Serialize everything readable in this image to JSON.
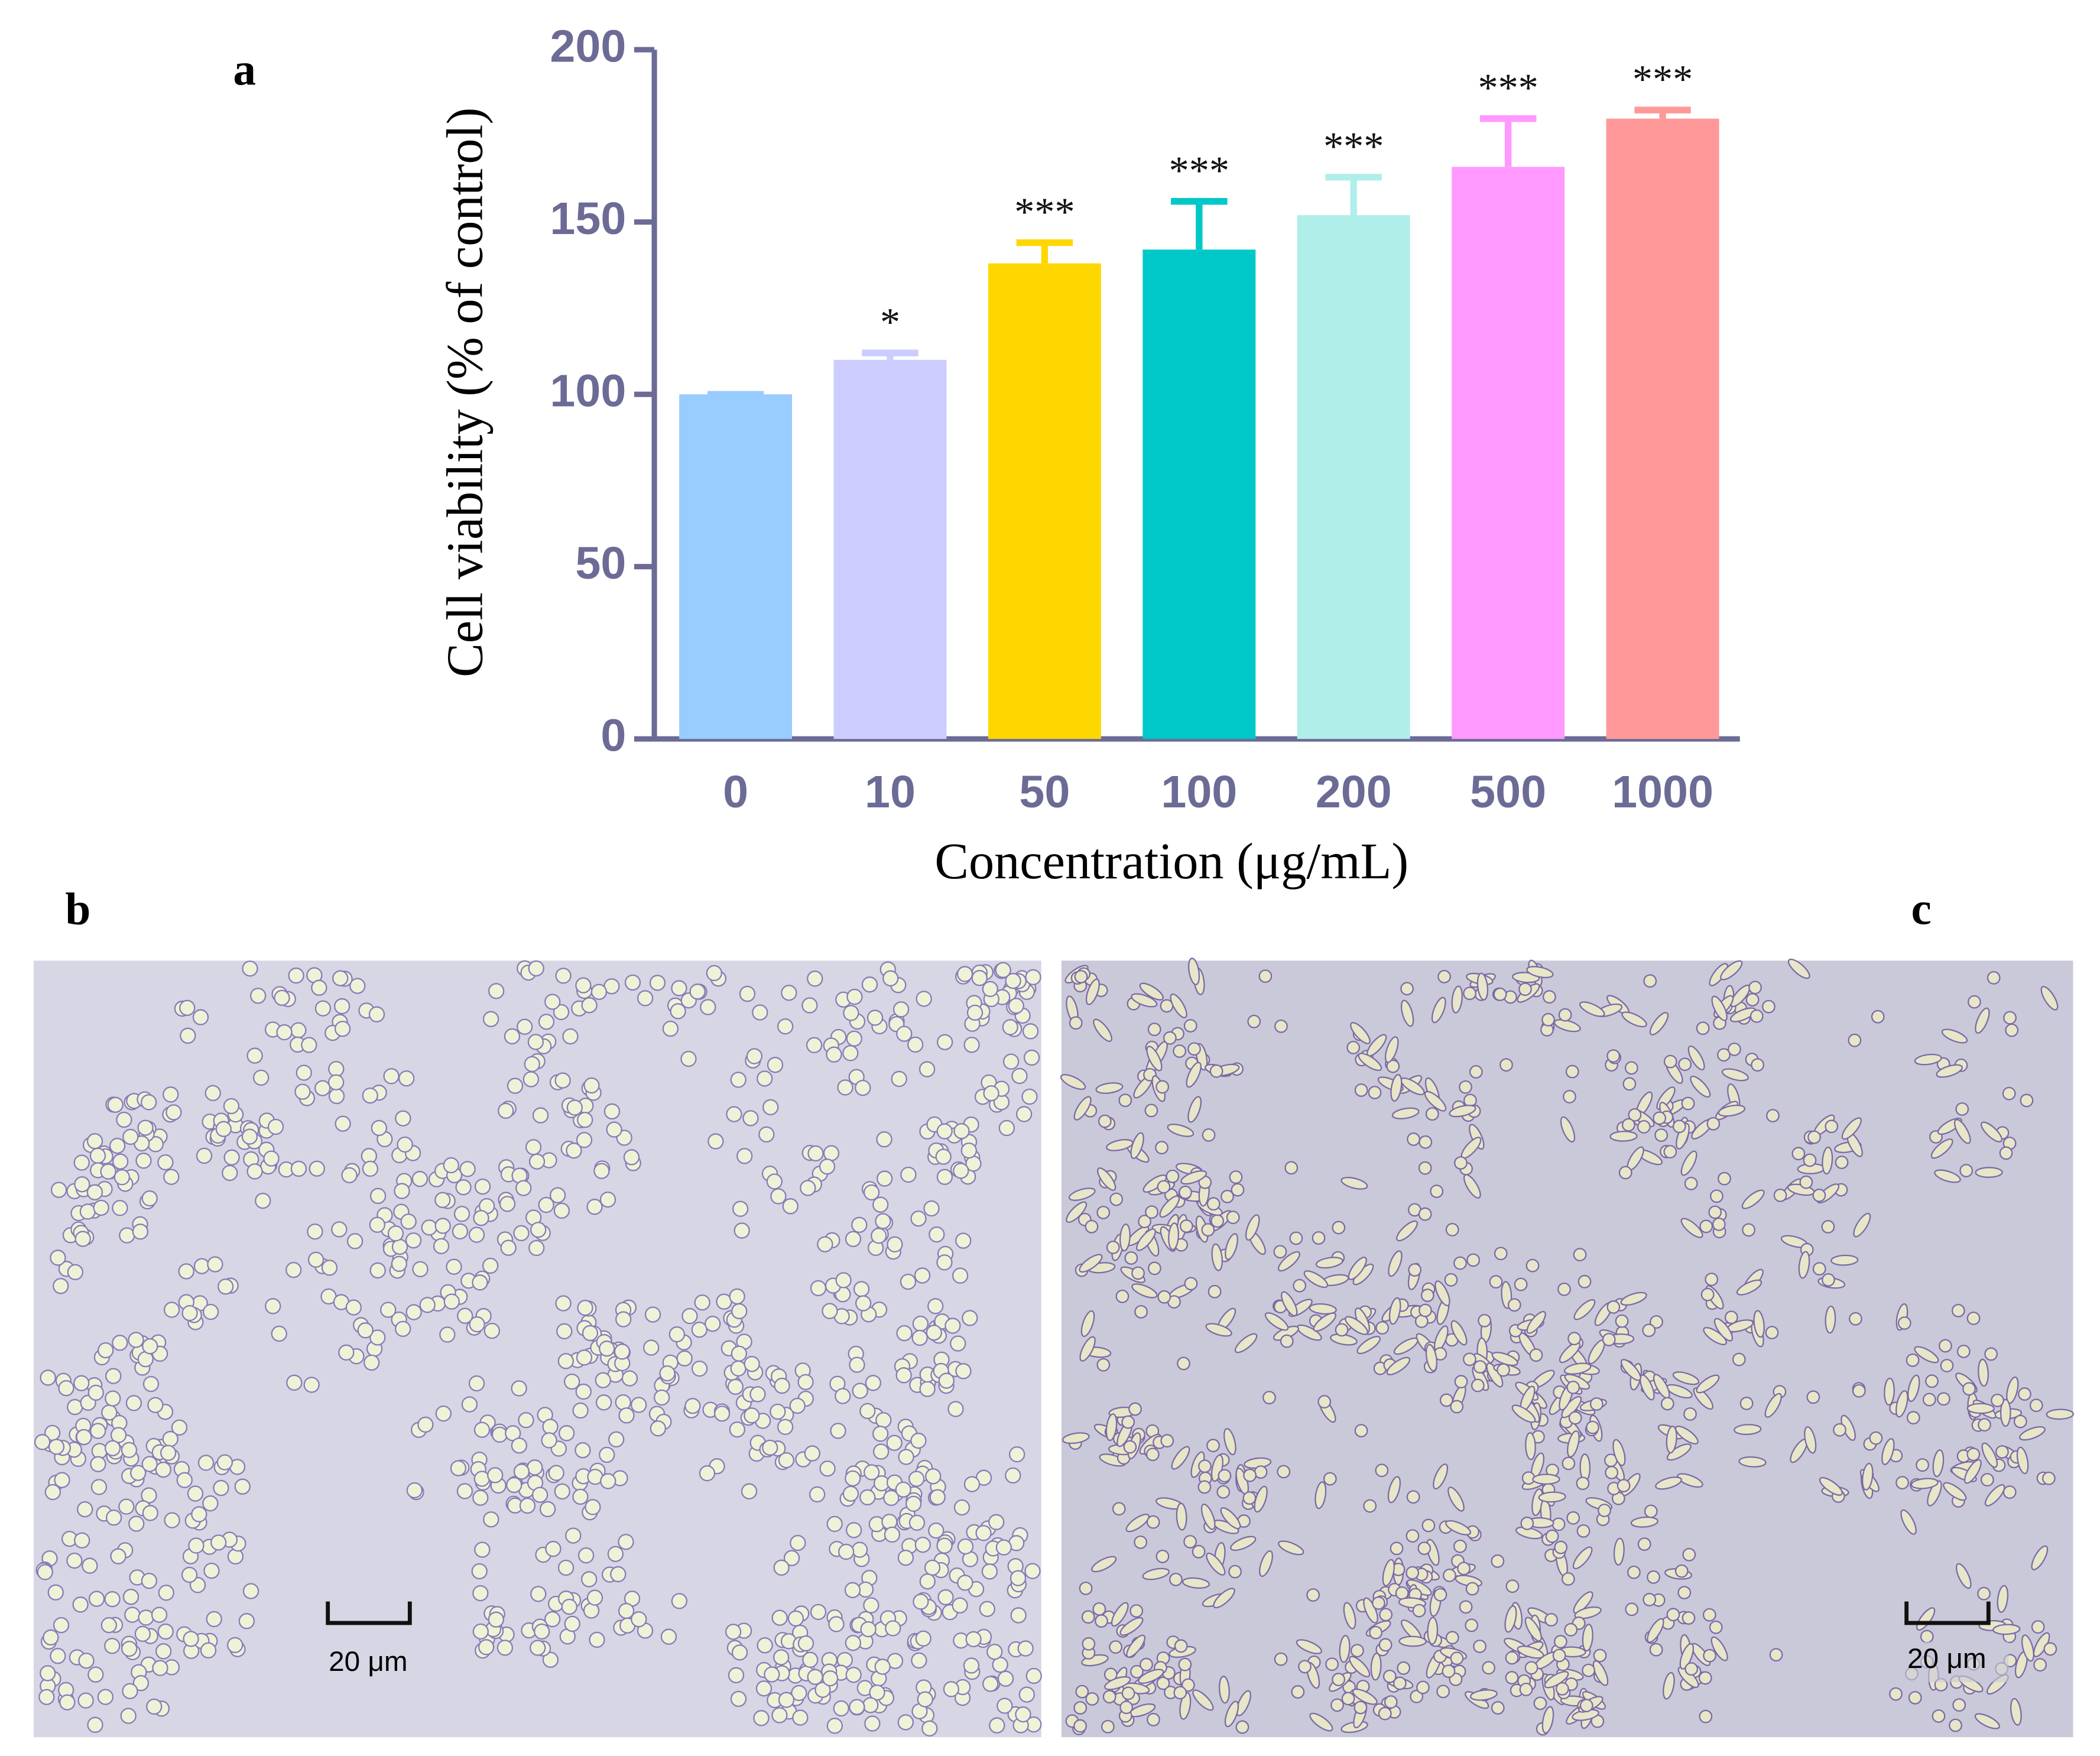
{
  "panel_labels": [
    "a",
    "b",
    "c"
  ],
  "chart_data": {
    "type": "bar",
    "x_label": "Concentration (μg/mL)",
    "y_label": "Cell viability (% of control)",
    "categories": [
      "0",
      "10",
      "50",
      "100",
      "200",
      "500",
      "1000"
    ],
    "values": [
      100,
      110,
      138,
      142,
      152,
      166,
      180
    ],
    "errors": [
      0,
      2,
      6,
      14,
      11,
      14,
      2.5
    ],
    "annotations": [
      null,
      "*",
      "***",
      "***",
      "***",
      "***",
      "***"
    ],
    "colors": [
      "#99ccff",
      "#ccccff",
      "#ffd700",
      "#00c8c8",
      "#b0eeea",
      "#ff99ff",
      "#ff9999"
    ],
    "ylim": [
      0,
      200
    ],
    "yticks": [
      0,
      50,
      100,
      150,
      200
    ]
  },
  "micrographs": [
    {
      "scale_bar": "20 μm"
    },
    {
      "scale_bar": "20 μm"
    }
  ]
}
